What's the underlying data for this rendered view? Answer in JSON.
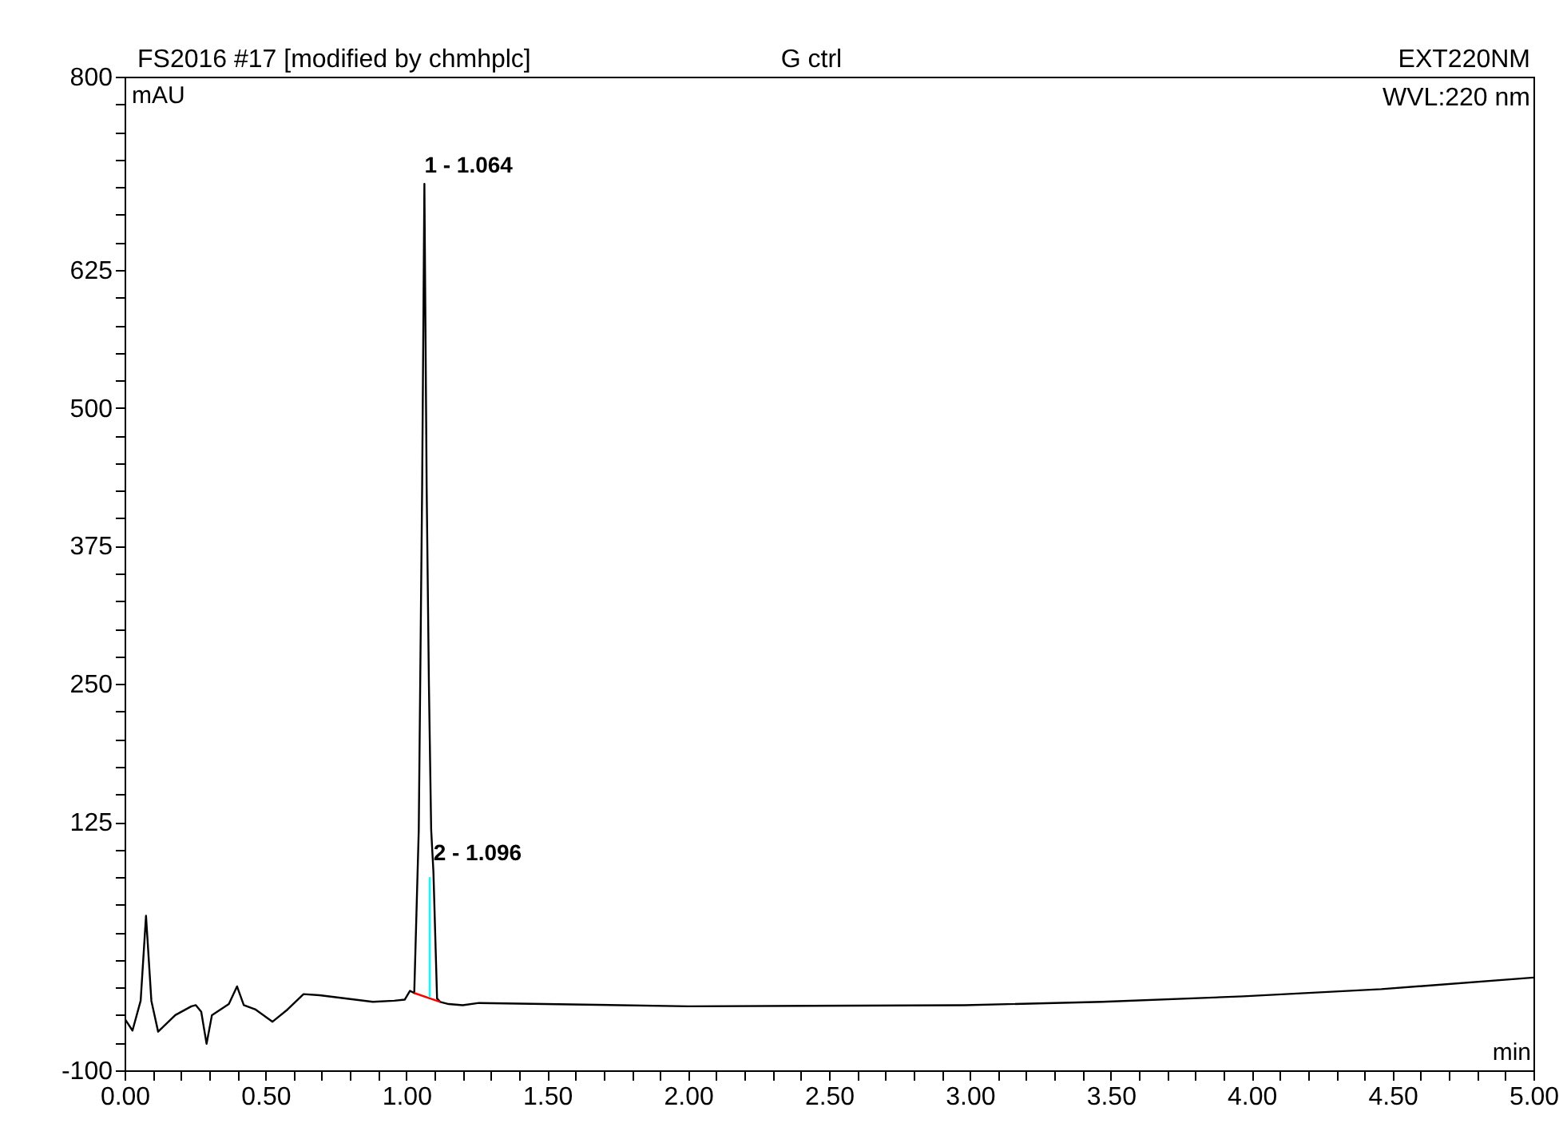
{
  "chart_data": {
    "type": "line",
    "title": "FS2016 #17 [modified by chmhplc]",
    "subtitle": "G ctrl",
    "xlabel": "min",
    "ylabel": "mAU",
    "annotations": [
      "EXT220NM",
      "WVL:220 nm",
      {
        "text": "1 - 1.064",
        "x": 1.064,
        "y": 703
      },
      {
        "text": "2 - 1.096",
        "x": 1.096,
        "y": 80
      }
    ],
    "series": [
      {
        "color": "#000000",
        "x": [
          0,
          0.028,
          0.057,
          0.076,
          0.095,
          0.119,
          0.18,
          0.237,
          0.253,
          0.272,
          0.291,
          0.31,
          0.37,
          0.399,
          0.423,
          0.465,
          0.525,
          0.578,
          0.635,
          0.692,
          0.881,
          0.957,
          0.994,
          1.013,
          1.028,
          1.044,
          1.056,
          1.064,
          1.072,
          1.08,
          1.088,
          1.096,
          1.109,
          1.12,
          1.15,
          1.2,
          1.258,
          2.0,
          2.98,
          3.47,
          3.97,
          4.46,
          5.0
        ],
        "values": [
          -53,
          -64,
          -37,
          40,
          -37,
          -65,
          -50,
          -42,
          -41,
          -47,
          -76,
          -50,
          -40,
          -24,
          -41,
          -45,
          -56,
          -45,
          -31,
          -32,
          -38,
          -37,
          -36,
          -28,
          -30,
          118,
          428,
          703,
          428,
          250,
          118,
          80,
          -35,
          -38,
          -40,
          -41,
          -39,
          -42,
          -41,
          -38,
          -33,
          -26.5,
          -16
        ]
      },
      {
        "color": "#ff0000",
        "x": [
          1.028,
          1.12
        ],
        "values": [
          -30,
          -38
        ]
      },
      {
        "color": "#00ffff",
        "x": [
          1.083,
          1.083
        ],
        "values": [
          -34,
          75
        ]
      }
    ],
    "xlim": [
      0,
      5
    ],
    "xticks": [
      {
        "value": 0,
        "label": "0.00"
      },
      {
        "value": 0.1,
        "label": null
      },
      {
        "value": 0.2,
        "label": null
      },
      {
        "value": 0.3,
        "label": null
      },
      {
        "value": 0.4,
        "label": null
      },
      {
        "value": 0.5,
        "label": "0.50"
      },
      {
        "value": 0.6,
        "label": null
      },
      {
        "value": 0.7,
        "label": null
      },
      {
        "value": 0.8,
        "label": null
      },
      {
        "value": 0.9,
        "label": null
      },
      {
        "value": 1,
        "label": "1.00"
      },
      {
        "value": 1.1,
        "label": null
      },
      {
        "value": 1.2,
        "label": null
      },
      {
        "value": 1.3,
        "label": null
      },
      {
        "value": 1.4,
        "label": null
      },
      {
        "value": 1.5,
        "label": "1.50"
      },
      {
        "value": 1.6,
        "label": null
      },
      {
        "value": 1.7,
        "label": null
      },
      {
        "value": 1.8,
        "label": null
      },
      {
        "value": 1.9,
        "label": null
      },
      {
        "value": 2,
        "label": "2.00"
      },
      {
        "value": 2.1,
        "label": null
      },
      {
        "value": 2.2,
        "label": null
      },
      {
        "value": 2.3,
        "label": null
      },
      {
        "value": 2.4,
        "label": null
      },
      {
        "value": 2.5,
        "label": "2.50"
      },
      {
        "value": 2.6,
        "label": null
      },
      {
        "value": 2.7,
        "label": null
      },
      {
        "value": 2.8,
        "label": null
      },
      {
        "value": 2.9,
        "label": null
      },
      {
        "value": 3,
        "label": "3.00"
      },
      {
        "value": 3.1,
        "label": null
      },
      {
        "value": 3.2,
        "label": null
      },
      {
        "value": 3.3,
        "label": null
      },
      {
        "value": 3.4,
        "label": null
      },
      {
        "value": 3.5,
        "label": "3.50"
      },
      {
        "value": 3.6,
        "label": null
      },
      {
        "value": 3.7,
        "label": null
      },
      {
        "value": 3.8,
        "label": null
      },
      {
        "value": 3.9,
        "label": null
      },
      {
        "value": 4,
        "label": "4.00"
      },
      {
        "value": 4.1,
        "label": null
      },
      {
        "value": 4.2,
        "label": null
      },
      {
        "value": 4.3,
        "label": null
      },
      {
        "value": 4.4,
        "label": null
      },
      {
        "value": 4.5,
        "label": "4.50"
      },
      {
        "value": 4.6,
        "label": null
      },
      {
        "value": 4.7,
        "label": null
      },
      {
        "value": 4.8,
        "label": null
      },
      {
        "value": 4.9,
        "label": null
      },
      {
        "value": 5,
        "label": "5.00"
      }
    ],
    "ylim": [
      -100,
      800
    ],
    "yticks": [
      -100,
      {
        "value": -75,
        "label": null
      },
      {
        "value": -50,
        "label": null
      },
      {
        "value": -25,
        "label": null
      },
      {
        "value": 0,
        "label": null
      },
      {
        "value": 25,
        "label": null
      },
      {
        "value": 50,
        "label": null
      },
      {
        "value": 75,
        "label": null
      },
      {
        "value": 100,
        "label": null
      },
      125,
      {
        "value": 150,
        "label": null
      },
      {
        "value": 175,
        "label": null
      },
      {
        "value": 200,
        "label": null
      },
      {
        "value": 225,
        "label": null
      },
      250,
      {
        "value": 275,
        "label": null
      },
      {
        "value": 300,
        "label": null
      },
      {
        "value": 325,
        "label": null
      },
      {
        "value": 350,
        "label": null
      },
      375,
      {
        "value": 400,
        "label": null
      },
      {
        "value": 425,
        "label": null
      },
      {
        "value": 450,
        "label": null
      },
      {
        "value": 475,
        "label": null
      },
      500,
      {
        "value": 525,
        "label": null
      },
      {
        "value": 550,
        "label": null
      },
      {
        "value": 575,
        "label": null
      },
      {
        "value": 600,
        "label": null
      },
      625,
      {
        "value": 650,
        "label": null
      },
      {
        "value": 675,
        "label": null
      },
      {
        "value": 700,
        "label": null
      },
      {
        "value": 725,
        "label": null
      },
      {
        "value": 750,
        "label": null
      },
      {
        "value": 775,
        "label": null
      },
      800
    ],
    "grid": false
  }
}
